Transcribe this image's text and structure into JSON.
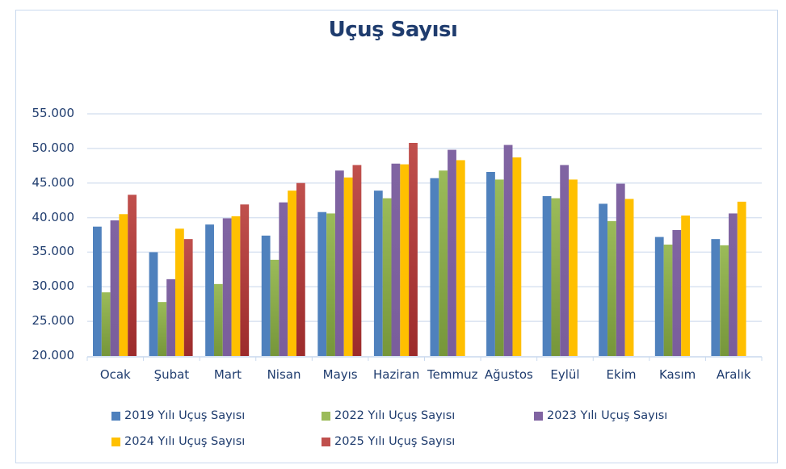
{
  "chart_data": {
    "type": "bar",
    "title": "Uçuş Sayısı",
    "xlabel": "",
    "ylabel": "",
    "ylim": [
      20000,
      55000
    ],
    "yticks": [
      20000,
      25000,
      30000,
      35000,
      40000,
      45000,
      50000,
      55000
    ],
    "ytick_labels": [
      "20.000",
      "25.000",
      "30.000",
      "35.000",
      "40.000",
      "45.000",
      "50.000",
      "55.000"
    ],
    "grid": true,
    "legend_position": "bottom",
    "categories": [
      "Ocak",
      "Şubat",
      "Mart",
      "Nisan",
      "Mayıs",
      "Haziran",
      "Temmuz",
      "Ağustos",
      "Eylül",
      "Ekim",
      "Kasım",
      "Aralık"
    ],
    "series": [
      {
        "name": "2019 Yılı Uçuş Sayısı",
        "color": "#4f81bd",
        "values": [
          38700,
          35000,
          39000,
          37400,
          40800,
          43900,
          45700,
          46600,
          43100,
          42000,
          37200,
          36900
        ]
      },
      {
        "name": "2022 Yılı Uçuş Sayısı",
        "color": "#9bbb59",
        "values": [
          29200,
          27800,
          30400,
          33900,
          40600,
          42800,
          46800,
          45500,
          42800,
          39500,
          36100,
          36000
        ]
      },
      {
        "name": "2023 Yılı Uçuş Sayısı",
        "color": "#8064a2",
        "values": [
          39600,
          31100,
          39900,
          42200,
          46800,
          47800,
          49800,
          50500,
          47600,
          44900,
          38200,
          40600
        ]
      },
      {
        "name": "2024 Yılı Uçuş Sayısı",
        "color": "#ffc000",
        "values": [
          40500,
          38400,
          40200,
          43900,
          45800,
          47700,
          48300,
          48700,
          45500,
          42700,
          40300,
          42300
        ]
      },
      {
        "name": "2025 Yılı Uçuş Sayısı",
        "color": "#c0504d",
        "values": [
          43300,
          36900,
          41900,
          45000,
          47600,
          50800,
          null,
          null,
          null,
          null,
          null,
          null
        ]
      }
    ]
  },
  "legend": [
    {
      "label": "2019 Yılı Uçuş Sayısı",
      "color": "#4f81bd"
    },
    {
      "label": "2022 Yılı Uçuş Sayısı",
      "color": "#9bbb59"
    },
    {
      "label": "2023 Yılı Uçuş Sayısı",
      "color": "#8064a2"
    },
    {
      "label": "2024 Yılı Uçuş Sayısı",
      "color": "#ffc000"
    },
    {
      "label": "2025 Yılı Uçuş Sayısı",
      "color": "#c0504d"
    }
  ],
  "colors": {
    "title": "#1f3c6e",
    "grid": "#d9e3f1",
    "axis_text": "#1f3c6e"
  }
}
